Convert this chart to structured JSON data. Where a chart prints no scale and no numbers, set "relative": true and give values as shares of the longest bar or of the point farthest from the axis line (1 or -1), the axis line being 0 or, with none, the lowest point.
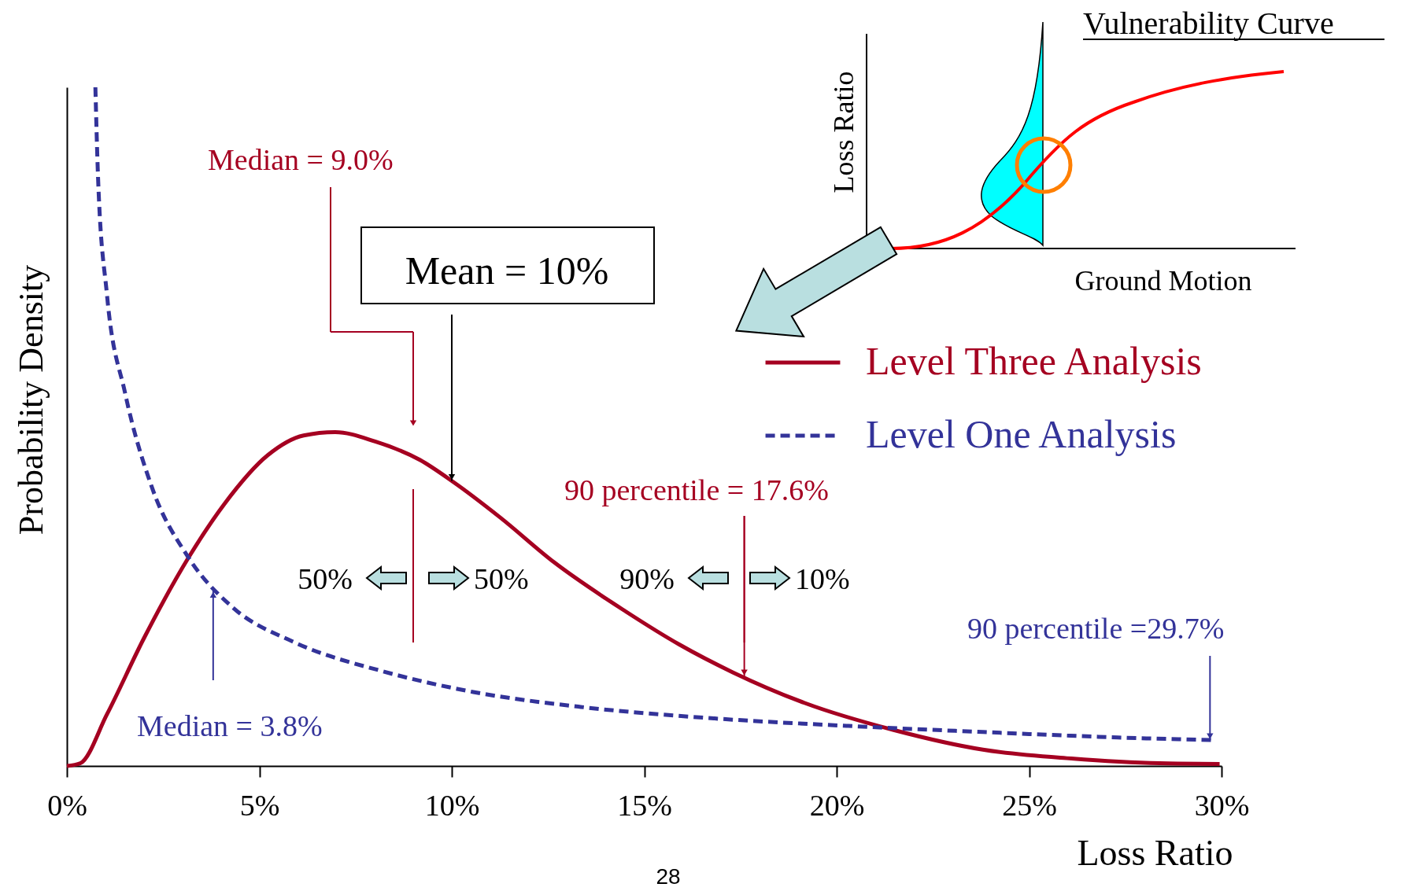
{
  "chart_data": {
    "type": "line",
    "relative": true,
    "xlabel": "Loss Ratio",
    "ylabel": "Probability Density",
    "xlim": [
      0,
      30
    ],
    "xticks": [
      {
        "value": 0,
        "label": "0%"
      },
      {
        "value": 5,
        "label": "5%"
      },
      {
        "value": 10,
        "label": "10%"
      },
      {
        "value": 15,
        "label": "15%"
      },
      {
        "value": 20,
        "label": "20%"
      },
      {
        "value": 25,
        "label": "25%"
      },
      {
        "value": 30,
        "label": "30%"
      }
    ],
    "grid": false,
    "legend": "top right",
    "marker": "none",
    "series": [
      {
        "name": "Level Three Analysis",
        "color": "#a50021",
        "line_style": "solid",
        "x": [
          0,
          0.35,
          1.04,
          2.0,
          3.16,
          4.09,
          5.22,
          6.15,
          6.97,
          8.01,
          9.17,
          10.05,
          11.26,
          12.66,
          14.51,
          15.91,
          17.3,
          19.16,
          21.48,
          23.8,
          26.1,
          28.4,
          29.95
        ],
        "values": [
          0,
          0.004,
          0.076,
          0.188,
          0.307,
          0.386,
          0.458,
          0.487,
          0.492,
          0.478,
          0.451,
          0.418,
          0.366,
          0.3,
          0.228,
          0.179,
          0.138,
          0.093,
          0.053,
          0.024,
          0.011,
          0.004,
          0.003
        ]
      },
      {
        "name": "Level One Analysis",
        "color": "#333399",
        "line_style": "dashed",
        "x": [
          0.74,
          0.81,
          1.04,
          1.51,
          2.2,
          3.16,
          4.3,
          5.92,
          8.24,
          10.56,
          13.35,
          16.83,
          20.3,
          23.8,
          27.3,
          29.83
        ],
        "values": [
          1.0,
          0.866,
          0.695,
          0.55,
          0.412,
          0.307,
          0.234,
          0.182,
          0.139,
          0.109,
          0.087,
          0.07,
          0.059,
          0.05,
          0.042,
          0.038
        ]
      }
    ],
    "annotations": [
      "Median = 9.0%",
      {
        "text": "Mean = 10%",
        "x": 10,
        "y": 0.42
      },
      {
        "text": "90 percentile = 17.6%",
        "x": 17.6,
        "y": 0.132
      },
      "50%",
      "50%",
      "90%",
      "10%",
      {
        "text": "90 percentile =29.7%",
        "x": 29.7,
        "y": 0.038
      },
      {
        "text": "Median = 3.8%",
        "x": 3.8,
        "y": 0.258
      },
      "Vulnerability Curve",
      "Loss Ratio",
      "Ground Motion",
      "28"
    ]
  }
}
